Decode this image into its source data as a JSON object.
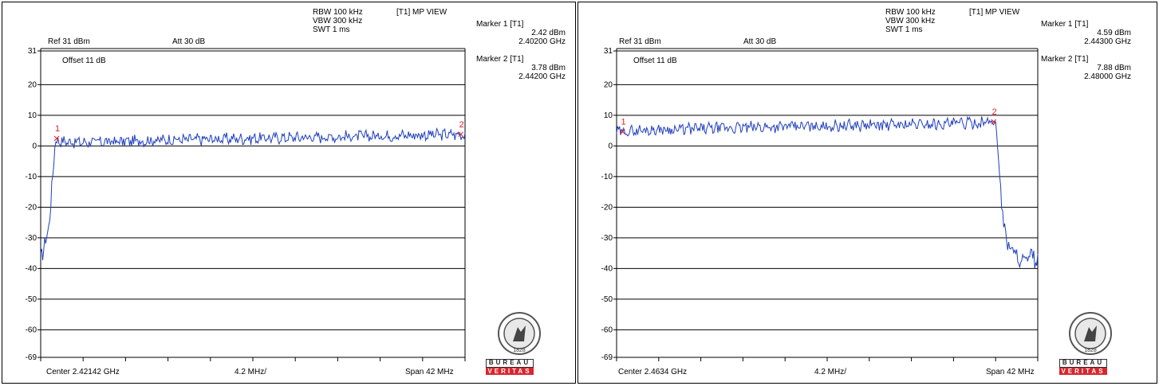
{
  "brand": {
    "accent": "#d7262e",
    "trace_color": "#1f3fbf",
    "marker_color": "#e0202a",
    "logo_top": "BUREAU",
    "logo_bottom": "VERITAS",
    "logo_year": "1828"
  },
  "chart_data": [
    {
      "type": "line",
      "title": "",
      "settings": {
        "rbw": "RBW 100 kHz",
        "vbw": "VBW 300 kHz",
        "swt": "SWT 1 ms",
        "trace_mode": "[T1] MP VIEW",
        "ref": "Ref 31 dBm",
        "att": "Att  30 dB",
        "offset": "Offset 11 dB"
      },
      "center_label": "Center 2.42142 GHz",
      "div_label": "4.2 MHz/",
      "span_label": "Span 42 MHz",
      "center_mhz": 2421.42,
      "span_mhz": 42,
      "ylim": [
        -69,
        31
      ],
      "y_ticks": [
        31,
        20,
        10,
        0,
        -10,
        -20,
        -30,
        -40,
        -50,
        -60,
        -69
      ],
      "y_tick_labels": [
        "31",
        "20",
        "10",
        "0",
        "-10",
        "-20",
        "-30",
        "-40",
        "-50",
        "-60",
        "-69"
      ],
      "grid": true,
      "markers": [
        {
          "id": "1",
          "title": "Marker 1 [T1]",
          "level": "2.42 dBm",
          "freq": "2.40200 GHz",
          "freq_mhz": 2402.0,
          "level_db": 2.42
        },
        {
          "id": "2",
          "title": "Marker 2 [T1]",
          "level": "3.78 dBm",
          "freq": "2.44200 GHz",
          "freq_mhz": 2442.0,
          "level_db": 3.78
        }
      ],
      "series": [
        {
          "values_description": "approximate trace levels in dBm at x fraction of span",
          "x": [
            0,
            0.005,
            0.012,
            0.02,
            0.03,
            0.035,
            0.04,
            0.05,
            0.1,
            0.2,
            0.3,
            0.4,
            0.5,
            0.6,
            0.7,
            0.8,
            0.9,
            1.0
          ],
          "y": [
            -37,
            -36,
            -29,
            -27,
            -5,
            1.5,
            1.8,
            1.5,
            1.2,
            1.5,
            2.0,
            2.2,
            2.5,
            2.8,
            3.0,
            3.3,
            3.6,
            3.8
          ]
        }
      ]
    },
    {
      "type": "line",
      "title": "",
      "settings": {
        "rbw": "RBW 100 kHz",
        "vbw": "VBW 300 kHz",
        "swt": "SWT 1 ms",
        "trace_mode": "[T1] MP VIEW",
        "ref": "Ref 31 dBm",
        "att": "Att  30 dB",
        "offset": "Offset 11 dB"
      },
      "center_label": "Center 2.4634 GHz",
      "div_label": "4.2 MHz/",
      "span_label": "Span 42 MHz",
      "center_mhz": 2463.4,
      "span_mhz": 42,
      "ylim": [
        -69,
        31
      ],
      "y_ticks": [
        31,
        20,
        10,
        0,
        -10,
        -20,
        -30,
        -40,
        -50,
        -60,
        -69
      ],
      "y_tick_labels": [
        "31",
        "20",
        "10",
        "0",
        "-10",
        "-20",
        "-30",
        "-40",
        "-50",
        "-60",
        "-69"
      ],
      "grid": true,
      "markers": [
        {
          "id": "1",
          "title": "Marker 1 [T1]",
          "level": "4.59 dBm",
          "freq": "2.44300 GHz",
          "freq_mhz": 2443.0,
          "level_db": 4.59
        },
        {
          "id": "2",
          "title": "Marker 2 [T1]",
          "level": "7.88 dBm",
          "freq": "2.48000 GHz",
          "freq_mhz": 2480.0,
          "level_db": 7.88
        }
      ],
      "series": [
        {
          "values_description": "approximate trace levels in dBm at x fraction of span",
          "x": [
            0,
            0.05,
            0.1,
            0.2,
            0.3,
            0.4,
            0.5,
            0.6,
            0.7,
            0.8,
            0.85,
            0.88,
            0.9,
            0.905,
            0.91,
            0.915,
            0.92,
            0.93,
            0.95,
            0.97,
            0.99,
            1.0
          ],
          "y": [
            4.5,
            5.0,
            5.3,
            5.6,
            6.0,
            6.3,
            6.5,
            6.7,
            7.0,
            7.3,
            7.5,
            7.7,
            7.9,
            0,
            -10,
            -20,
            -27,
            -32,
            -36,
            -38,
            -36,
            -38
          ]
        }
      ]
    }
  ]
}
